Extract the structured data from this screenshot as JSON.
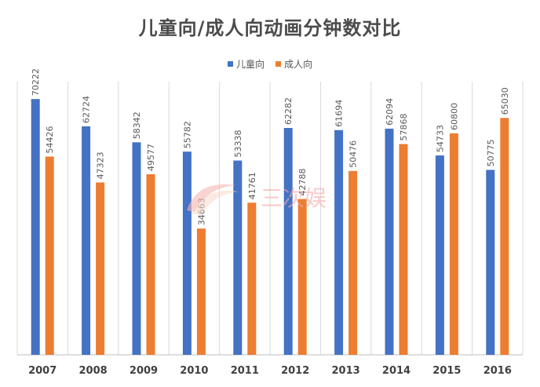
{
  "chart_data": {
    "type": "bar",
    "title": "儿童向/成人向动画分钟数对比",
    "categories": [
      "2007",
      "2008",
      "2009",
      "2010",
      "2011",
      "2012",
      "2013",
      "2014",
      "2015",
      "2016"
    ],
    "series": [
      {
        "name": "儿童向",
        "color": "#4472c4",
        "values": [
          70222,
          62724,
          58342,
          55782,
          53338,
          62282,
          61694,
          62094,
          54733,
          50775
        ]
      },
      {
        "name": "成人向",
        "color": "#ed7d31",
        "values": [
          54426,
          47323,
          49577,
          34663,
          41761,
          42788,
          50476,
          57868,
          60800,
          65030
        ]
      }
    ],
    "xlabel": "",
    "ylabel": "",
    "ylim": [
      0,
      75000
    ],
    "grid": "vertical separators",
    "legend_position": "top-center",
    "data_labels": "vertical above bars"
  },
  "watermark": {
    "text": "三次娱"
  }
}
